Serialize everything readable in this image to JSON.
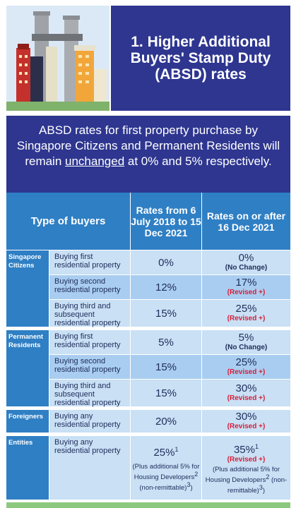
{
  "title": "1. Higher Additional Buyers' Stamp Duty (ABSD) rates",
  "intro": {
    "before": "ABSD rates for first property purchase by Singapore Citizens and Permanent Residents will remain ",
    "emphasis": "unchanged",
    "after": " at 0% and 5% respectively."
  },
  "table": {
    "headers": {
      "type": "Type of buyers",
      "old": "Rates from 6 July 2018 to 15 Dec 2021",
      "new": "Rates on or after 16 Dec 2021"
    },
    "groups": [
      {
        "label": "Singapore Citizens",
        "rows": [
          {
            "desc": "Buying first residential property",
            "old": "0%",
            "new": "0%",
            "note": "(No Change)",
            "note_type": "change"
          },
          {
            "desc": "Buying second residential property",
            "old": "12%",
            "new": "17%",
            "note": "(Revised +)",
            "note_type": "revised"
          },
          {
            "desc": "Buying third and subsequent residential property",
            "old": "15%",
            "new": "25%",
            "note": "(Revised +)",
            "note_type": "revised"
          }
        ]
      },
      {
        "label": "Permanent Residents",
        "rows": [
          {
            "desc": "Buying first residential property",
            "old": "5%",
            "new": "5%",
            "note": "(No Change)",
            "note_type": "change"
          },
          {
            "desc": "Buying second residential property",
            "old": "15%",
            "new": "25%",
            "note": "(Revised +)",
            "note_type": "revised"
          },
          {
            "desc": "Buying third and subsequent residential property",
            "old": "15%",
            "new": "30%",
            "note": "(Revised +)",
            "note_type": "revised"
          }
        ]
      },
      {
        "label": "Foreigners",
        "rows": [
          {
            "desc": "Buying any residential property",
            "old": "20%",
            "new": "30%",
            "note": "(Revised +)",
            "note_type": "revised"
          }
        ]
      },
      {
        "label": "Entities",
        "rows": [
          {
            "desc": "Buying any residential property",
            "old": "25%",
            "old_sup": "1",
            "old_extra": "(Plus additional 5% for Housing Developers",
            "old_extra_sup": "2",
            "old_extra_tail": " (non-remittable)",
            "old_extra_tail_sup": "3",
            "old_extra_close": ")",
            "new": "35%",
            "new_sup": "1",
            "note": "(Revised +)",
            "note_type": "revised",
            "new_extra": "(Plus additional 5% for Housing Developers",
            "new_extra_sup": "2",
            "new_extra_tail": " (non-remittable)",
            "new_extra_tail_sup": "3",
            "new_extra_close": ")"
          }
        ]
      }
    ]
  },
  "colors": {
    "navy": "#2e3690",
    "header_blue": "#2f7fc4",
    "row_light": "#c9e0f5",
    "row_mid": "#a9cdf0",
    "revised_red": "#d6203a"
  },
  "icons": {
    "header_image": "city-skyline-illustration"
  }
}
